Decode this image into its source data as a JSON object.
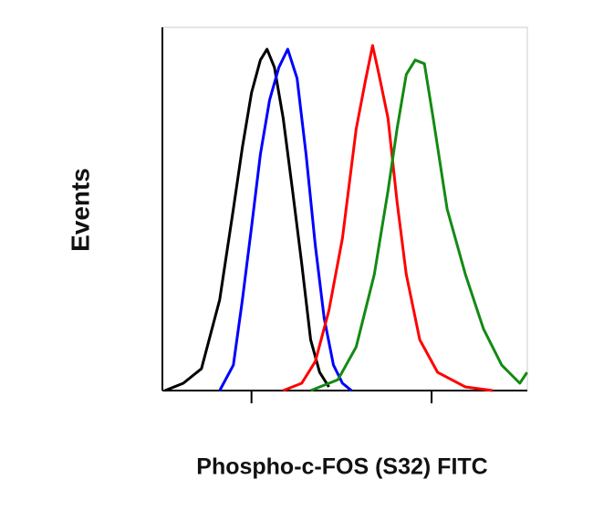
{
  "chart_data": {
    "type": "line",
    "x_label": "Phospho-c-FOS (S32) FITC",
    "y_label": "Events",
    "xscale": "log",
    "xlim": [
      3.2,
      340
    ],
    "ylim": [
      0,
      100
    ],
    "xticks": [
      10,
      100
    ],
    "series": [
      {
        "name": null,
        "color": "#000000",
        "x": [
          3.31,
          4.18,
          5.27,
          6.66,
          7.93,
          8.9,
          10,
          11.2,
          12.2,
          13.4,
          15,
          16.9,
          19,
          21.3,
          23.9,
          26.9
        ],
        "values": [
          0,
          2,
          6,
          25,
          50,
          67,
          82,
          91,
          94,
          89,
          75,
          55,
          35,
          14,
          5,
          1
        ]
      },
      {
        "name": null,
        "color": "#0000ff",
        "x": [
          6.66,
          7.93,
          8.9,
          10,
          11.2,
          12.6,
          14.2,
          15.9,
          17.9,
          20.1,
          22.6,
          25.3,
          28.5,
          32,
          35.9
        ],
        "values": [
          0,
          7,
          25,
          45,
          65,
          80,
          89,
          94,
          86,
          65,
          40,
          20,
          7,
          2,
          0
        ]
      },
      {
        "name": null,
        "color": "#ff0000",
        "x": [
          15,
          19,
          22.6,
          26.9,
          32,
          38.1,
          42.8,
          47,
          51,
          57.3,
          64.3,
          72.3,
          85.9,
          108,
          154,
          218
        ],
        "values": [
          0,
          2,
          8,
          22,
          42,
          72,
          85,
          95,
          87,
          75,
          52,
          32,
          14,
          5,
          1,
          0
        ]
      },
      {
        "name": null,
        "color": "#138a13",
        "x": [
          21.3,
          30.2,
          38.1,
          48.1,
          57.3,
          64.3,
          72.3,
          81.1,
          91.2,
          102,
          122,
          154,
          194,
          245,
          309,
          339
        ],
        "values": [
          0,
          3,
          12,
          32,
          55,
          72,
          87,
          91,
          90,
          75,
          50,
          32,
          17,
          7,
          2,
          5
        ]
      }
    ]
  }
}
